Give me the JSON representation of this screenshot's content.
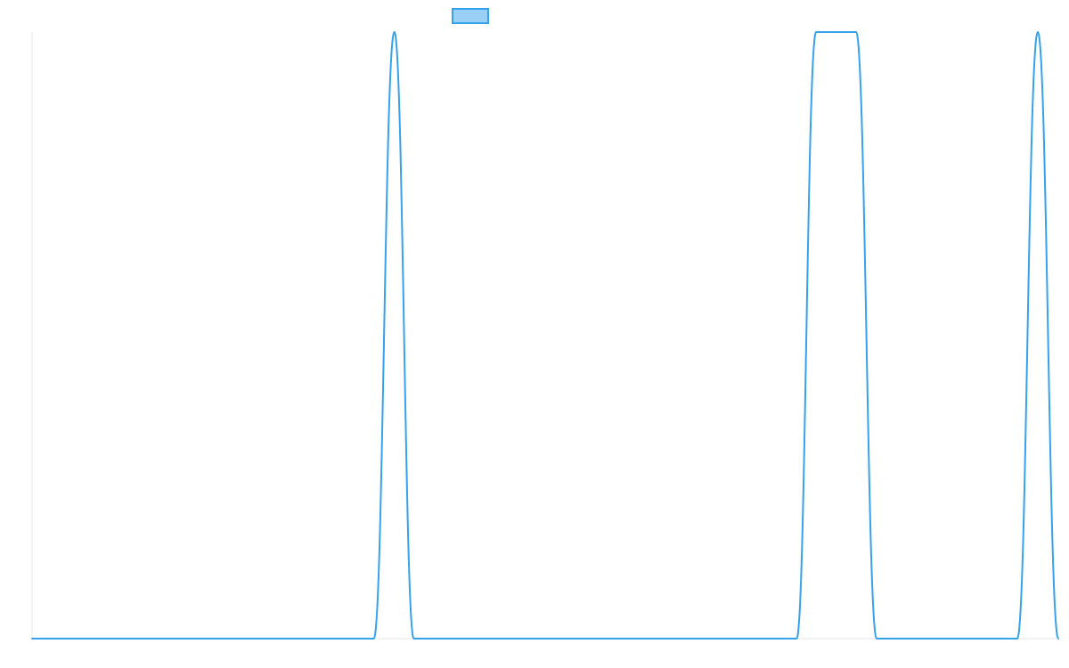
{
  "chart_data": {
    "type": "line",
    "title": "",
    "xlabel": "",
    "ylabel": "",
    "x_range": [
      0,
      1000
    ],
    "ylim": [
      0,
      1
    ],
    "grid": false,
    "legend_position": "top-center",
    "series": [
      {
        "color": "#36a2eb",
        "fill_color": "#9ad0f5",
        "points": [
          {
            "x": 0,
            "y": 0
          },
          {
            "x": 333,
            "y": 0
          },
          {
            "x": 353,
            "y": 1
          },
          {
            "x": 372,
            "y": 0
          },
          {
            "x": 745,
            "y": 0
          },
          {
            "x": 764,
            "y": 1
          },
          {
            "x": 803,
            "y": 1
          },
          {
            "x": 823,
            "y": 0
          },
          {
            "x": 960,
            "y": 0
          },
          {
            "x": 980,
            "y": 1
          },
          {
            "x": 1000,
            "y": 0
          }
        ]
      }
    ]
  }
}
